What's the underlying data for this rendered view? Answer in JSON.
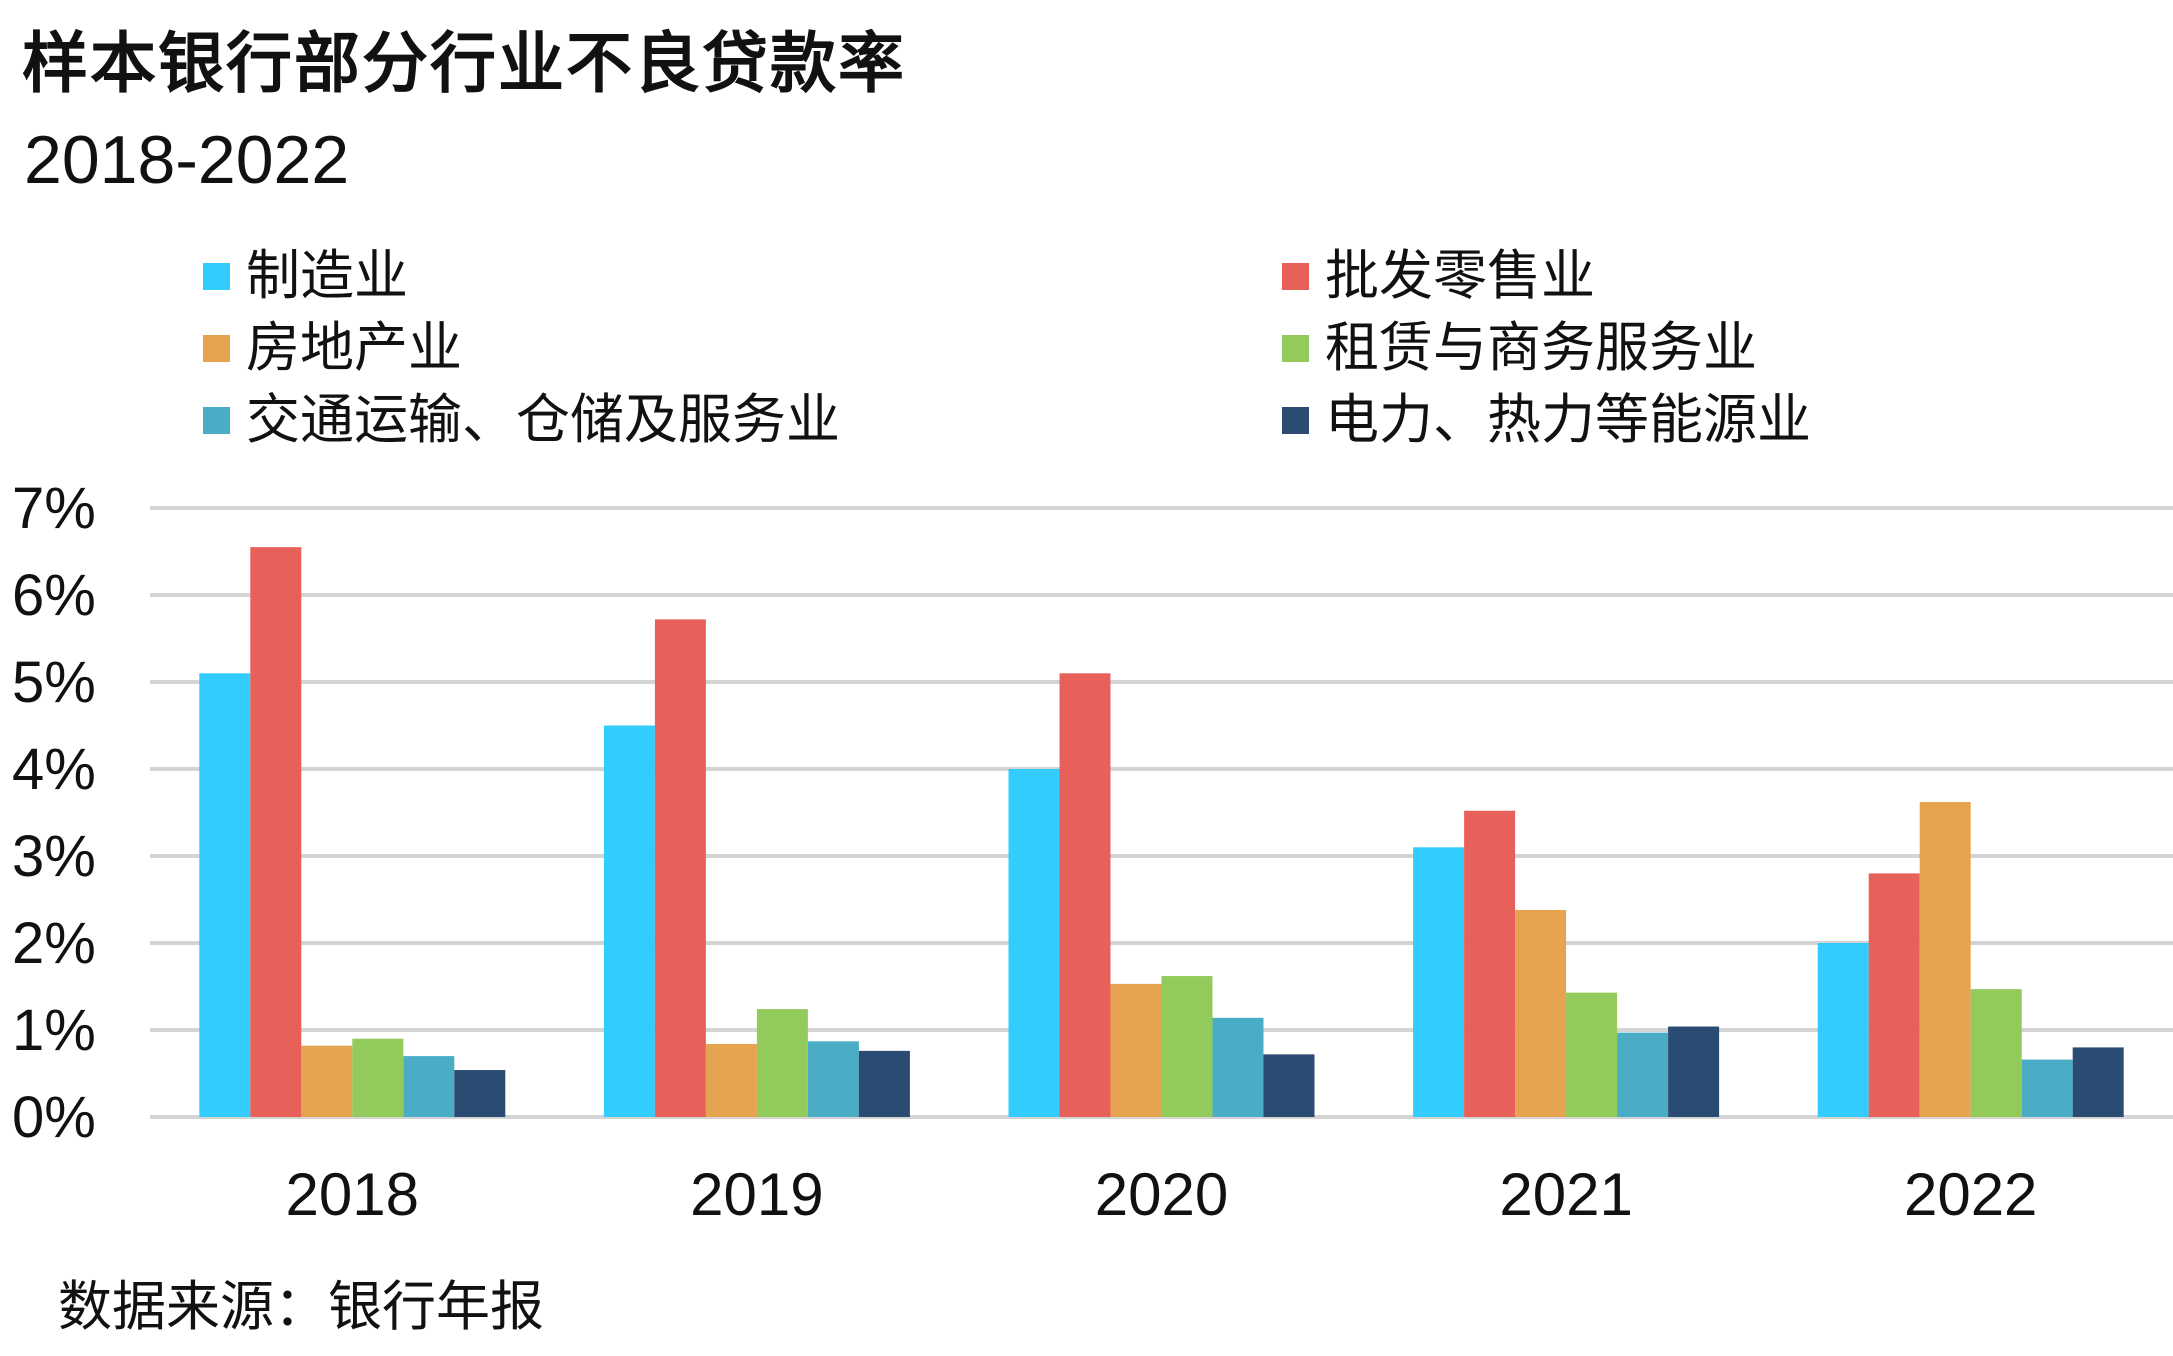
{
  "title": "样本银行部分行业不良贷款率",
  "subtitle": "2018-2022",
  "source": "数据来源：银行年报",
  "chart_data": {
    "type": "bar",
    "categories": [
      "2018",
      "2019",
      "2020",
      "2021",
      "2022"
    ],
    "ylim": [
      0,
      7
    ],
    "yticks": [
      0,
      1,
      2,
      3,
      4,
      5,
      6,
      7
    ],
    "ytick_labels": [
      "0%",
      "1%",
      "2%",
      "3%",
      "4%",
      "5%",
      "6%",
      "7%"
    ],
    "grid": true,
    "legend_position": "top",
    "series": [
      {
        "name": "制造业",
        "color": "#33ccff",
        "values": [
          5.1,
          4.5,
          4.0,
          3.1,
          2.0
        ]
      },
      {
        "name": "批发零售业",
        "color": "#e8605a",
        "values": [
          6.55,
          5.72,
          5.1,
          3.52,
          2.8
        ]
      },
      {
        "name": "房地产业",
        "color": "#e6a450",
        "values": [
          0.82,
          0.84,
          1.53,
          2.38,
          3.62
        ]
      },
      {
        "name": "租赁与商务服务业",
        "color": "#92cb5b",
        "values": [
          0.9,
          1.24,
          1.62,
          1.43,
          1.47
        ]
      },
      {
        "name": "交通运输、仓储及服务业",
        "color": "#4bacc6",
        "values": [
          0.7,
          0.87,
          1.14,
          0.97,
          0.66
        ]
      },
      {
        "name": "电力、热力等能源业",
        "color": "#2b4c72",
        "values": [
          0.54,
          0.76,
          0.72,
          1.04,
          0.8
        ]
      }
    ]
  }
}
